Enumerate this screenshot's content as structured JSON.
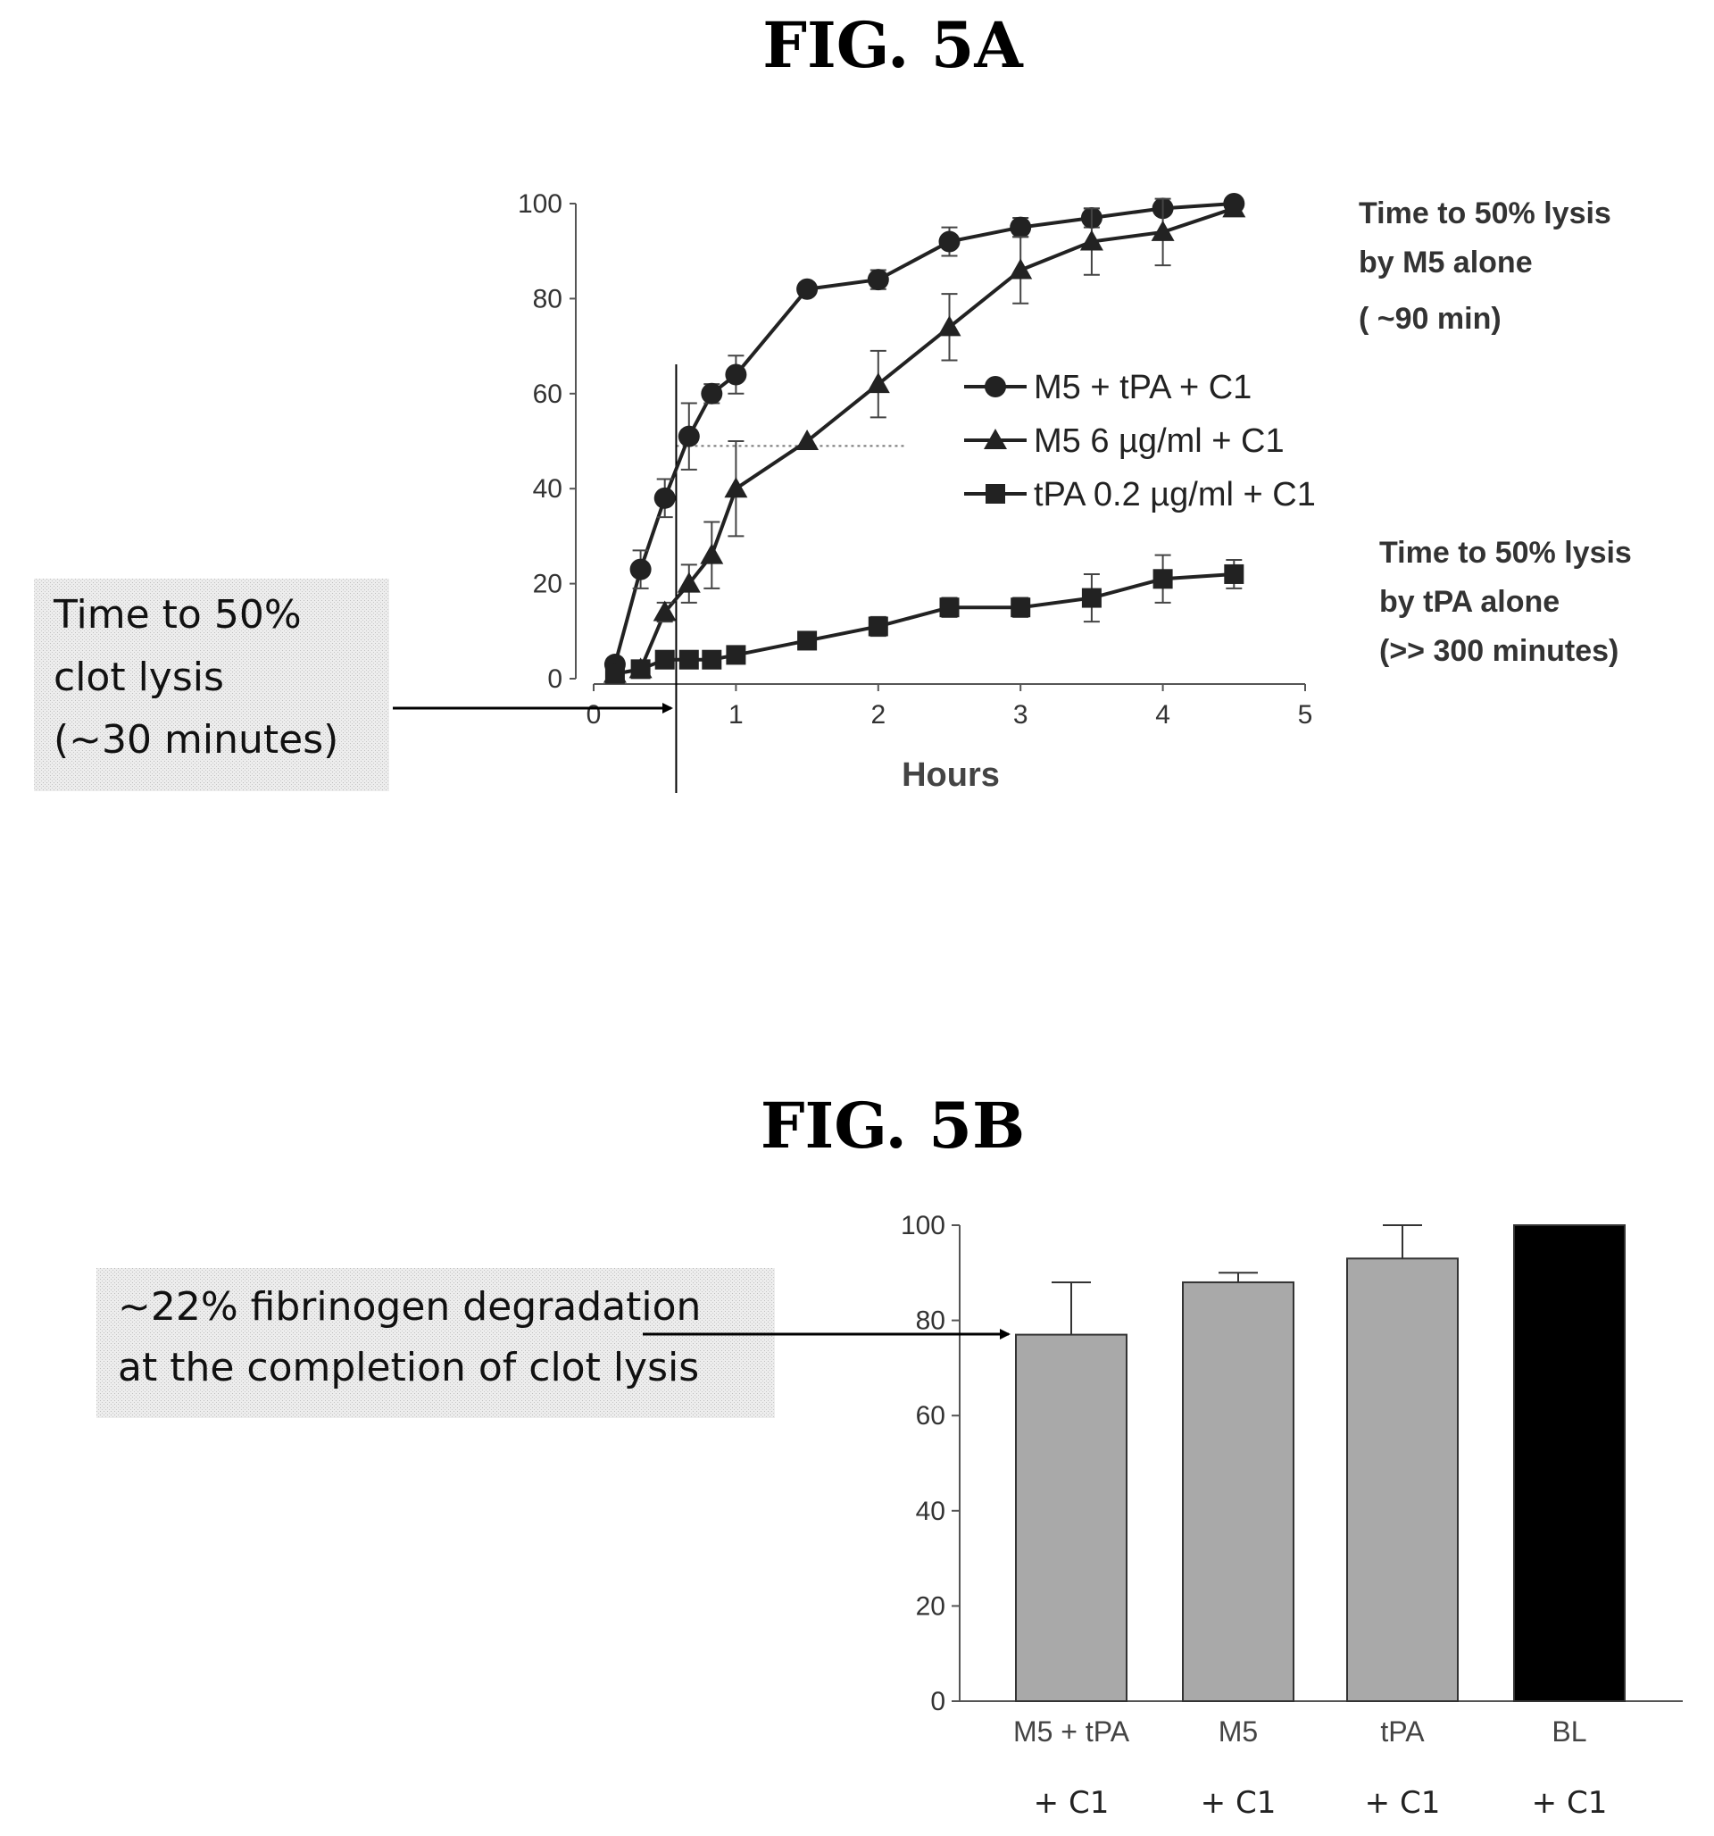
{
  "chart_data": [
    {
      "id": "5A",
      "type": "line",
      "title": "FIG. 5A",
      "xlabel": "Hours",
      "ylabel": "",
      "xlim": [
        0,
        5
      ],
      "ylim": [
        0,
        100
      ],
      "xticks": [
        "0",
        "1",
        "2",
        "3",
        "4",
        "5"
      ],
      "yticks": [
        "0",
        "20",
        "40",
        "60",
        "80",
        "100"
      ],
      "grid": false,
      "legend_position": "center-right",
      "series": [
        {
          "name": "M5 + tPA + C1",
          "marker": "circle",
          "points": [
            {
              "x": 0.15,
              "y": 3,
              "err": 0
            },
            {
              "x": 0.33,
              "y": 23,
              "err": 4
            },
            {
              "x": 0.5,
              "y": 38,
              "err": 4
            },
            {
              "x": 0.67,
              "y": 51,
              "err": 7
            },
            {
              "x": 0.83,
              "y": 60,
              "err": 2
            },
            {
              "x": 1.0,
              "y": 64,
              "err": 4
            },
            {
              "x": 1.5,
              "y": 82,
              "err": 0
            },
            {
              "x": 2.0,
              "y": 84,
              "err": 2
            },
            {
              "x": 2.5,
              "y": 92,
              "err": 3
            },
            {
              "x": 3.0,
              "y": 95,
              "err": 2
            },
            {
              "x": 3.5,
              "y": 97,
              "err": 2
            },
            {
              "x": 4.0,
              "y": 99,
              "err": 0
            },
            {
              "x": 4.5,
              "y": 100,
              "err": 0
            }
          ]
        },
        {
          "name": "M5 6 µg/ml  + C1",
          "marker": "triangle",
          "points": [
            {
              "x": 0.15,
              "y": 1,
              "err": 0
            },
            {
              "x": 0.33,
              "y": 2,
              "err": 0
            },
            {
              "x": 0.5,
              "y": 14,
              "err": 2
            },
            {
              "x": 0.67,
              "y": 20,
              "err": 4
            },
            {
              "x": 0.83,
              "y": 26,
              "err": 7
            },
            {
              "x": 1.0,
              "y": 40,
              "err": 10
            },
            {
              "x": 1.5,
              "y": 50,
              "err": 0
            },
            {
              "x": 2.0,
              "y": 62,
              "err": 7
            },
            {
              "x": 2.5,
              "y": 74,
              "err": 7
            },
            {
              "x": 3.0,
              "y": 86,
              "err": 7
            },
            {
              "x": 3.5,
              "y": 92,
              "err": 7
            },
            {
              "x": 4.0,
              "y": 94,
              "err": 7
            },
            {
              "x": 4.5,
              "y": 99,
              "err": 0
            }
          ]
        },
        {
          "name": "tPA 0.2 µg/ml  + C1",
          "marker": "square",
          "points": [
            {
              "x": 0.15,
              "y": 1,
              "err": 0
            },
            {
              "x": 0.33,
              "y": 2,
              "err": 0
            },
            {
              "x": 0.5,
              "y": 4,
              "err": 0
            },
            {
              "x": 0.67,
              "y": 4,
              "err": 0
            },
            {
              "x": 0.83,
              "y": 4,
              "err": 0
            },
            {
              "x": 1.0,
              "y": 5,
              "err": 0
            },
            {
              "x": 1.5,
              "y": 8,
              "err": 0
            },
            {
              "x": 2.0,
              "y": 11,
              "err": 2
            },
            {
              "x": 2.5,
              "y": 15,
              "err": 2
            },
            {
              "x": 3.0,
              "y": 15,
              "err": 2
            },
            {
              "x": 3.5,
              "y": 17,
              "err": 5
            },
            {
              "x": 4.0,
              "y": 21,
              "err": 5
            },
            {
              "x": 4.5,
              "y": 22,
              "err": 3
            }
          ]
        }
      ],
      "reference_lines": {
        "y": 49,
        "x": 0.58
      },
      "annotations": {
        "callout": [
          "Time to 50%",
          "clot lysis",
          "(~30 minutes)"
        ],
        "m5_note": [
          "Time to 50% lysis",
          "by M5 alone",
          "( ~90 min)"
        ],
        "tpa_note": [
          "Time to 50% lysis",
          "by tPA alone",
          "(>> 300 minutes)"
        ]
      }
    },
    {
      "id": "5B",
      "type": "bar",
      "title": "FIG. 5B",
      "xlabel": "",
      "ylabel": "",
      "ylim": [
        0,
        100
      ],
      "yticks": [
        "0",
        "20",
        "40",
        "60",
        "80",
        "100"
      ],
      "grid": false,
      "categories": [
        "M5 + tPA",
        "M5",
        "tPA",
        "BL"
      ],
      "category_sublabels": [
        "+ C1",
        "+ C1",
        "+ C1",
        "+ C1"
      ],
      "values": [
        77,
        88,
        93,
        100
      ],
      "errors": [
        11,
        2,
        7,
        0
      ],
      "colors": [
        "#a9a9a9",
        "#a9a9a9",
        "#a9a9a9",
        "#000000"
      ],
      "annotations": {
        "callout": [
          "~22% fibrinogen degradation",
          "at the completion of clot lysis"
        ]
      }
    }
  ]
}
